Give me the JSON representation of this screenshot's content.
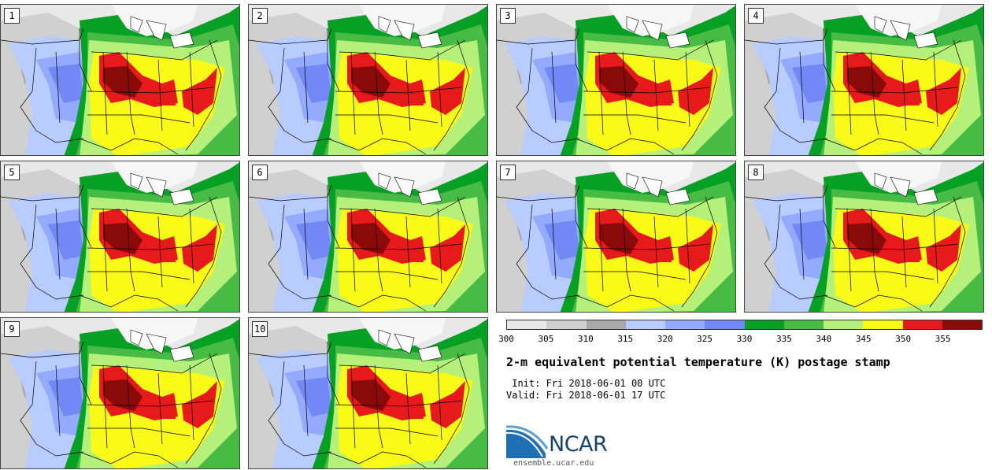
{
  "panels": [
    {
      "label": "1"
    },
    {
      "label": "2"
    },
    {
      "label": "3"
    },
    {
      "label": "4"
    },
    {
      "label": "5"
    },
    {
      "label": "6"
    },
    {
      "label": "7"
    },
    {
      "label": "8"
    },
    {
      "label": "9"
    },
    {
      "label": "10"
    }
  ],
  "colorbar": {
    "ticks": [
      "300",
      "305",
      "310",
      "315",
      "320",
      "325",
      "330",
      "335",
      "340",
      "345",
      "350",
      "355"
    ],
    "colors": [
      "#e8e8e8",
      "#d0d0d0",
      "#a8a8a8",
      "#b8ccff",
      "#94aaff",
      "#7188f5",
      "#05a024",
      "#48bb44",
      "#b4f07a",
      "#fafa18",
      "#e61a1a",
      "#8a0a0a"
    ]
  },
  "title": "2-m equivalent potential temperature (K) postage stamp",
  "init_text": " Init: Fri 2018-06-01 00 UTC",
  "valid_text": "Valid: Fri 2018-06-01 17 UTC",
  "logo_text": "NCAR",
  "website": "ensemble.ucar.edu"
}
